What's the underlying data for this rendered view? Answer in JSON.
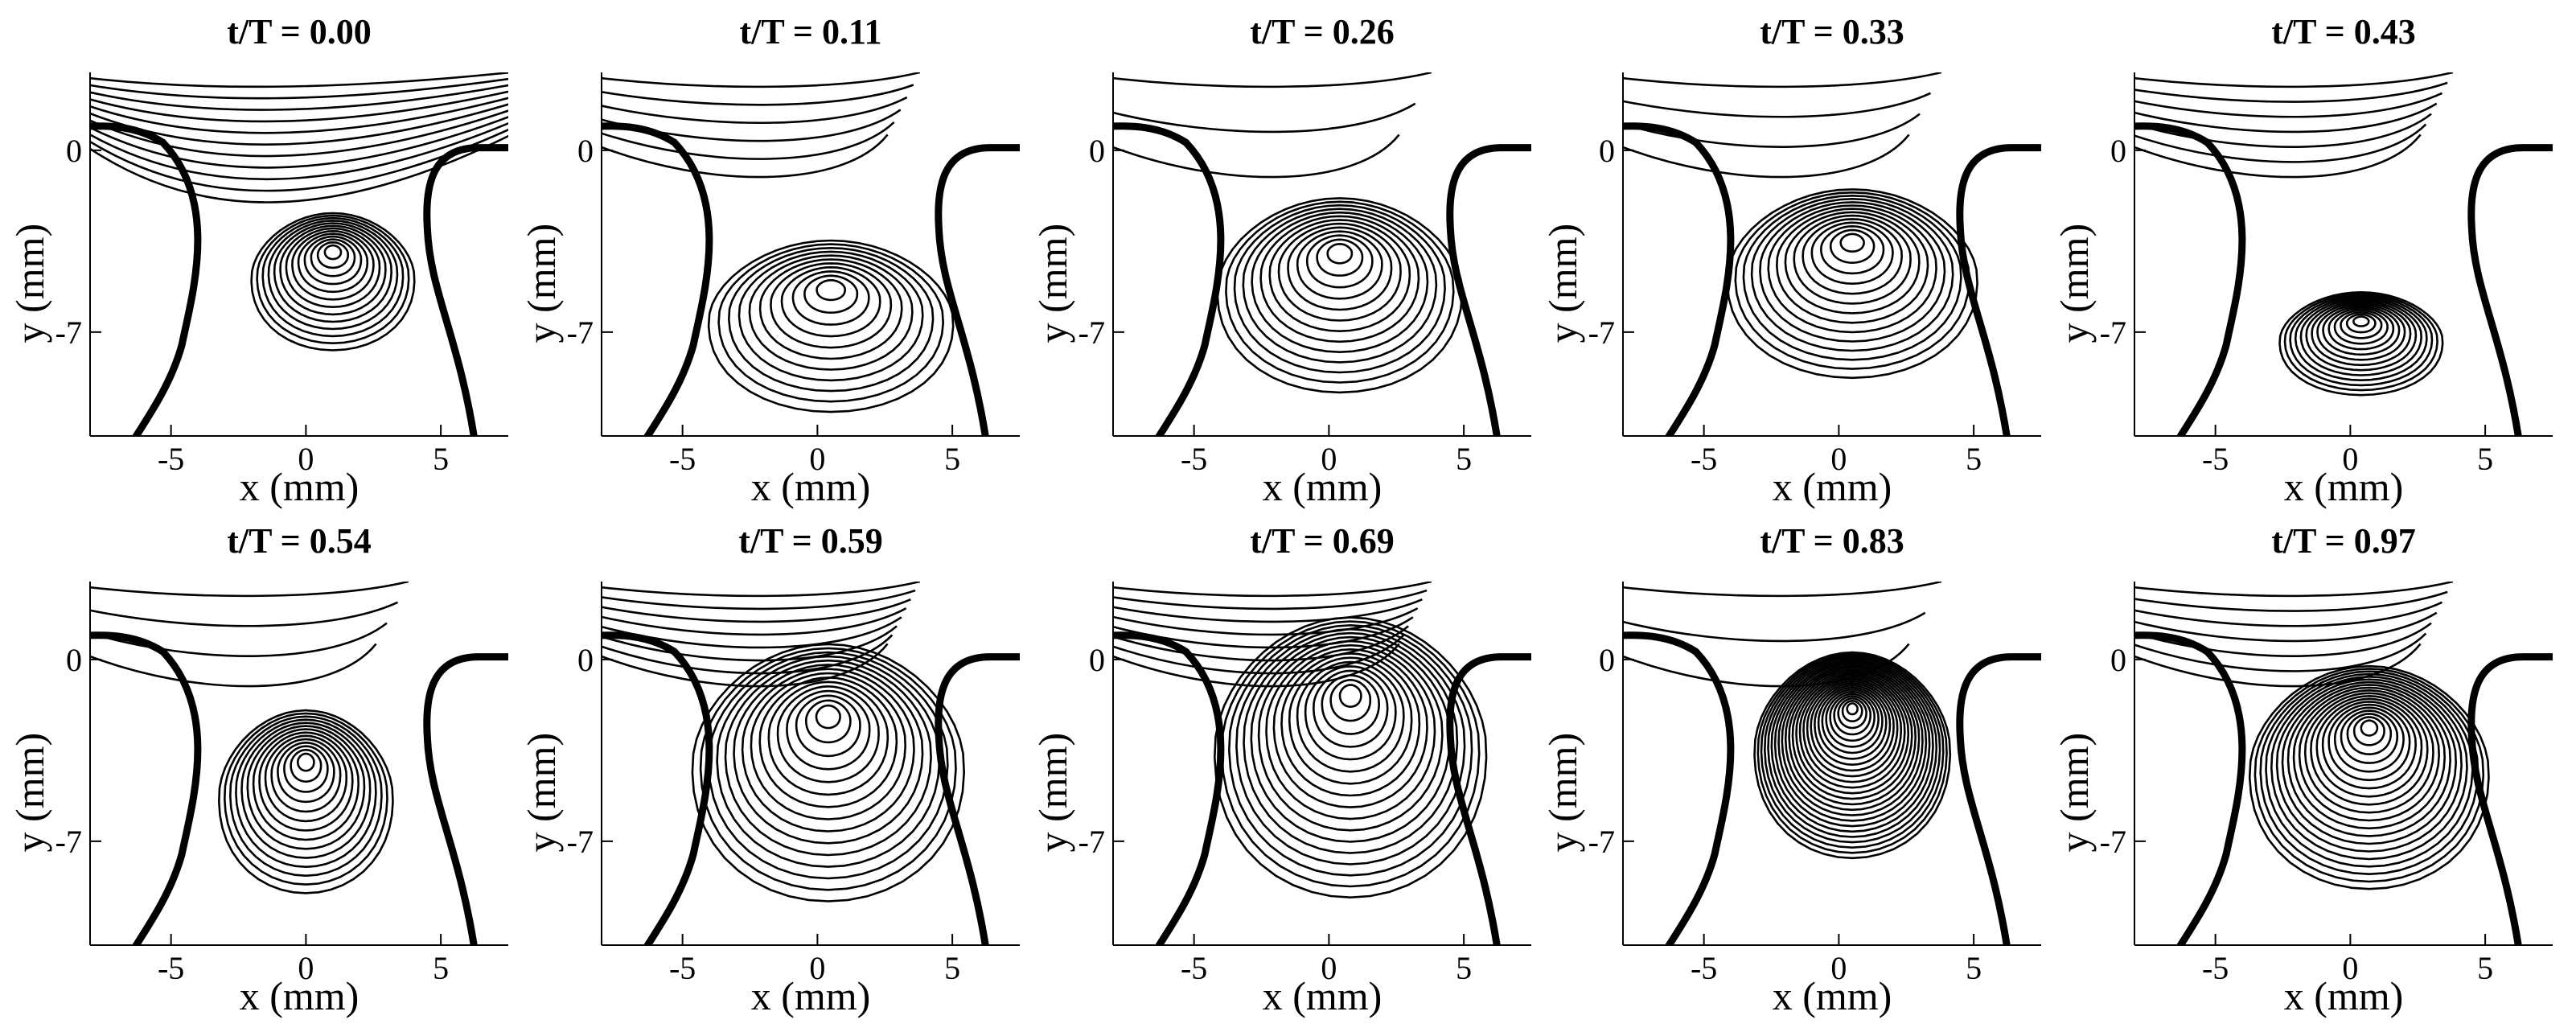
{
  "chart_data": {
    "type": "contour",
    "shared_axes": {
      "xlabel": "x (mm)",
      "ylabel": "y (mm)",
      "xlim": [
        -8,
        7.5
      ],
      "ylim": [
        -11,
        3
      ],
      "xticks": [
        -5,
        0,
        5
      ],
      "yticks": [
        0,
        -7
      ],
      "xtick_labels": [
        "-5",
        "0",
        "5"
      ],
      "ytick_labels": [
        "0",
        "-7"
      ],
      "grid": false,
      "legend": "none"
    },
    "wall_color": "#000000",
    "line_color": "#000000",
    "panels": [
      {
        "title": "t/T = 0.00",
        "vortex": {
          "x": 1.0,
          "y": -3.8,
          "rx": 3.0,
          "ry": 4.8,
          "levels": 13,
          "density": "high"
        },
        "upper_streamlines": 11
      },
      {
        "title": "t/T = 0.11",
        "vortex": {
          "x": 0.5,
          "y": -5.2,
          "rx": 4.5,
          "ry": 6.0,
          "levels": 11,
          "density": "medium"
        },
        "upper_streamlines": 6
      },
      {
        "title": "t/T = 0.26",
        "vortex": {
          "x": 0.4,
          "y": -3.8,
          "rx": 4.5,
          "ry": 6.8,
          "levels": 13,
          "density": "medium"
        },
        "upper_streamlines": 3
      },
      {
        "title": "t/T = 0.33",
        "vortex": {
          "x": 0.5,
          "y": -3.4,
          "rx": 4.6,
          "ry": 6.6,
          "levels": 14,
          "density": "high"
        },
        "upper_streamlines": 4
      },
      {
        "title": "t/T = 0.43",
        "vortex": {
          "x": 0.4,
          "y": -6.5,
          "rx": 3.0,
          "ry": 3.6,
          "levels": 14,
          "density": "high"
        },
        "upper_streamlines": 7
      },
      {
        "title": "t/T = 0.54",
        "vortex": {
          "x": 0.0,
          "y": -3.8,
          "rx": 3.2,
          "ry": 6.4,
          "levels": 14,
          "density": "medium"
        },
        "upper_streamlines": 4
      },
      {
        "title": "t/T = 0.59",
        "vortex": {
          "x": 0.4,
          "y": -2.0,
          "rx": 5.0,
          "ry": 9.0,
          "levels": 15,
          "density": "medium"
        },
        "upper_streamlines": 8
      },
      {
        "title": "t/T = 0.69",
        "vortex": {
          "x": 0.8,
          "y": -1.2,
          "rx": 5.0,
          "ry": 9.8,
          "levels": 17,
          "density": "medium"
        },
        "upper_streamlines": 8
      },
      {
        "title": "t/T = 0.83",
        "vortex": {
          "x": 0.5,
          "y": -1.8,
          "rx": 3.6,
          "ry": 7.2,
          "levels": 26,
          "density": "very-high"
        },
        "upper_streamlines": 3
      },
      {
        "title": "t/T = 0.97",
        "vortex": {
          "x": 0.7,
          "y": -2.5,
          "rx": 4.4,
          "ry": 7.8,
          "levels": 20,
          "density": "high"
        },
        "upper_streamlines": 7
      }
    ]
  }
}
